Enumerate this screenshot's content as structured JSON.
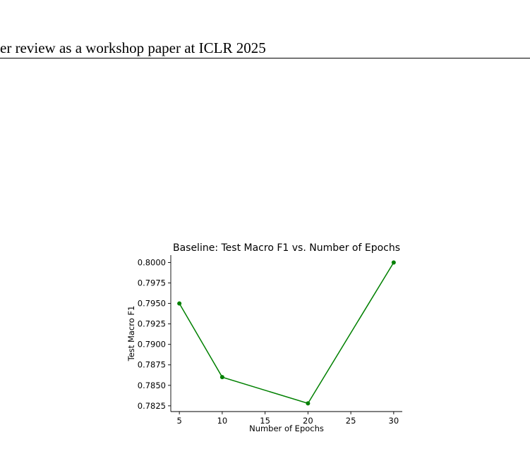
{
  "header": {
    "running_title": "er review as a workshop paper at ICLR 2025"
  },
  "chart_data": {
    "type": "line",
    "title": "Baseline: Test Macro F1 vs. Number of Epochs",
    "xlabel": "Number of Epochs",
    "ylabel": "Test Macro F1",
    "x": [
      5,
      10,
      20,
      30
    ],
    "series": [
      {
        "values": [
          0.795,
          0.786,
          0.7828,
          0.8
        ],
        "color": "#008000"
      }
    ],
    "xlim": [
      4.0,
      31.0
    ],
    "ylim": [
      0.7818,
      0.8009
    ],
    "xticks": [
      5,
      10,
      15,
      20,
      25,
      30
    ],
    "xtick_labels": [
      "5",
      "10",
      "15",
      "20",
      "25",
      "30"
    ],
    "yticks": [
      0.7825,
      0.785,
      0.7875,
      0.79,
      0.7925,
      0.795,
      0.7975,
      0.8
    ],
    "ytick_labels": [
      "0.7825",
      "0.7850",
      "0.7875",
      "0.7900",
      "0.7925",
      "0.7950",
      "0.7975",
      "0.8000"
    ],
    "grid": false,
    "markers": true
  }
}
